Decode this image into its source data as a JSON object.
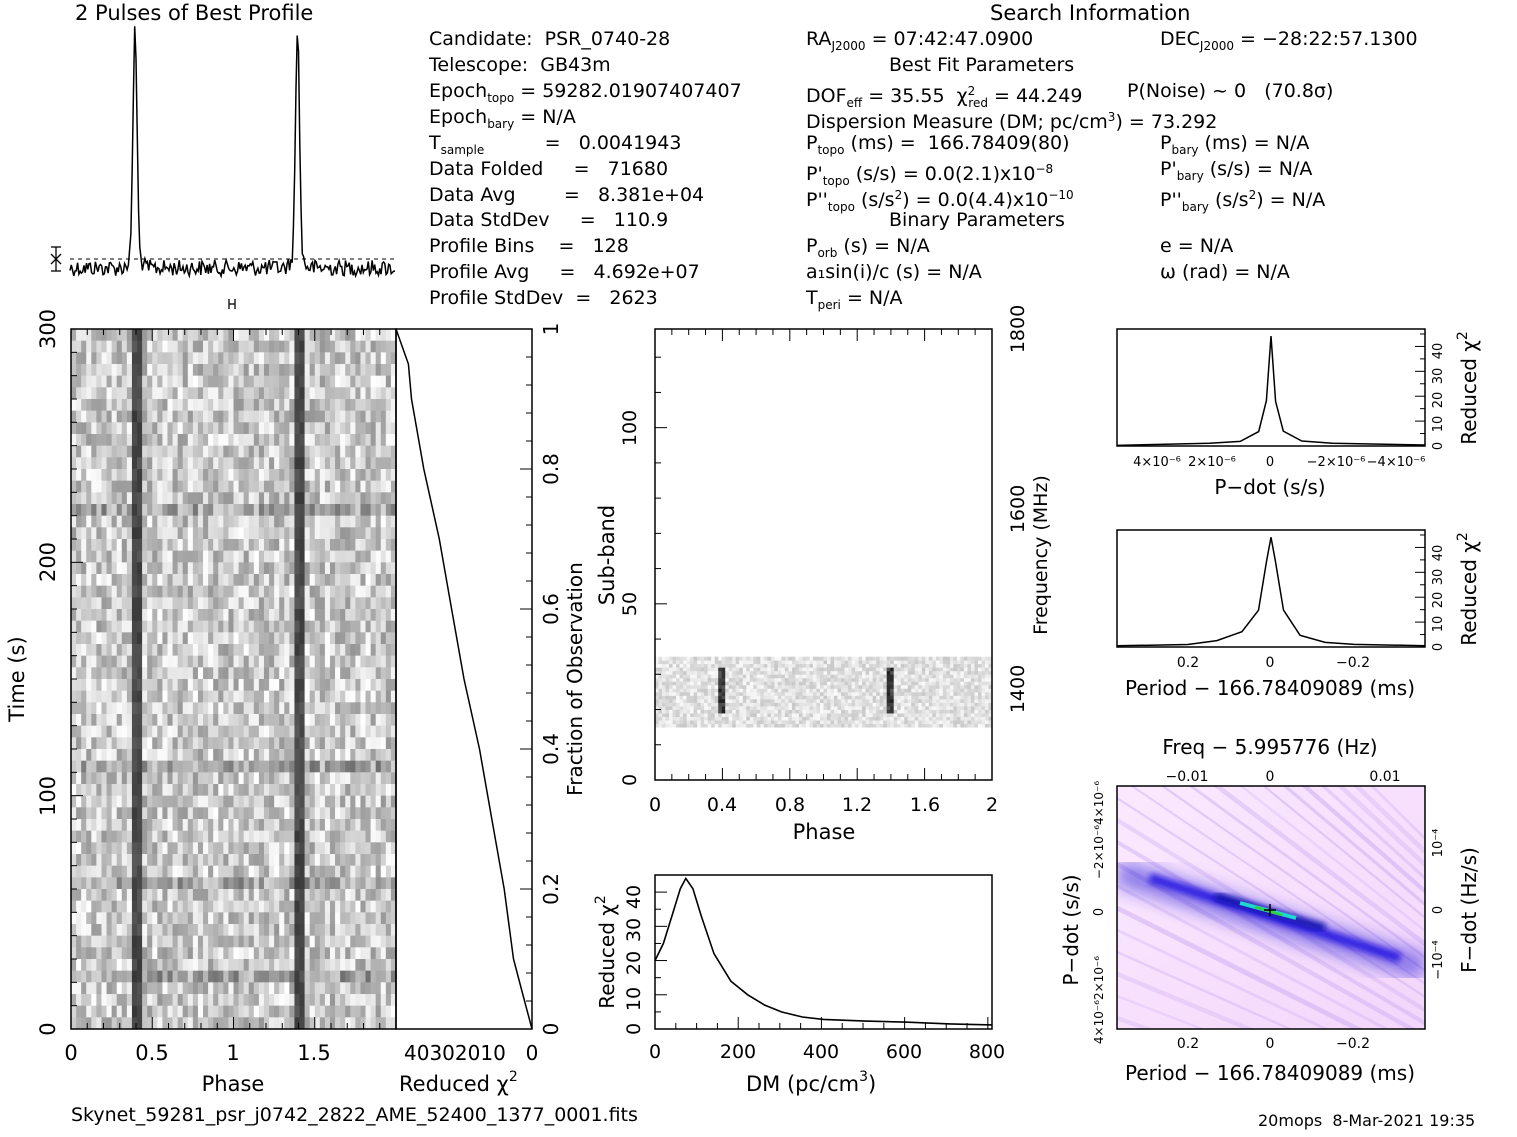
{
  "header": {
    "profile_title": "2 Pulses of Best Profile",
    "search_title": "Search Information",
    "best_fit_title": "Best Fit Parameters",
    "binary_title": "Binary Parameters"
  },
  "info": {
    "candidate": "Candidate:  PSR_0740-28",
    "telescope": "Telescope:  GB43m",
    "epoch_topo_val": "= 59282.01907407407",
    "epoch_bary_val": "= N/A",
    "t_sample_val": "=   0.0041943",
    "data_folded": "Data Folded     =   71680",
    "data_avg": "Data Avg        =   8.381e+04",
    "data_stddev": "Data StdDev     =   110.9",
    "profile_bins": "Profile Bins    =   128",
    "profile_avg": "Profile Avg     =   4.692e+07",
    "profile_stddev": "Profile StdDev  =   2623",
    "ra_val": "= 07:42:47.0900",
    "dec_val": "= −28:22:57.1300",
    "dof_val": "= 35.55",
    "chi_val": "= 44.249",
    "pnoise": "P(Noise) ~ 0   (70.8σ)",
    "dm_line": "Dispersion Measure (DM; pc/cm",
    "dm_val": ") = 73.292",
    "p_topo_val": "(ms) =  166.78409(80)",
    "p_bary_val": "(ms) = N/A",
    "pd_topo_val": "(s/s) = 0.0(2.1)x10",
    "pd_topo_exp": "−8",
    "pd_bary_val": "(s/s) = N/A",
    "pdd_topo_val": "(s/s",
    "pdd_topo_val2": ") = 0.0(4.4)x10",
    "pdd_topo_exp": "−10",
    "pdd_bary_val": "(s/s",
    "pdd_bary_val2": ") = N/A",
    "porb": "(s) = N/A",
    "e": "e = N/A",
    "a1": "a₁sin(i)/c (s) = N/A",
    "omega": "ω (rad) = N/A",
    "tperi": "= N/A"
  },
  "footer": {
    "filename": "Skynet_59281_psr_j0742_2822_AME_52400_1377_0001.fits",
    "stamp": "20mops  8-Mar-2021 19:35"
  },
  "chart_data": [
    {
      "type": "line",
      "title": "2 Pulses of Best Profile",
      "x": "phase 0-2",
      "pulse_peaks_phase": [
        0.4,
        1.4
      ],
      "notes": "profile shown twice; noise baseline with dashed mean and error bar"
    },
    {
      "type": "heatmap",
      "xlabel": "Phase",
      "ylabel": "Time (s)",
      "xlim": [
        0,
        2
      ],
      "ylim": [
        0,
        300
      ],
      "xticks": [
        "0",
        "0.5",
        "1",
        "1.5"
      ],
      "yticks": [
        "0",
        "100",
        "200",
        "300"
      ],
      "pulse_columns_phase": [
        0.4,
        1.4
      ]
    },
    {
      "type": "line",
      "xlabel": "Reduced χ²",
      "ylabel": "Fraction of Observation",
      "xticks": [
        "40",
        "30",
        "20",
        "10",
        "0"
      ],
      "yticks": [
        "0",
        "0.2",
        "0.4",
        "0.6",
        "0.8",
        "1"
      ],
      "x_reversed": true,
      "points": [
        [
          0,
          0
        ],
        [
          3,
          0.05
        ],
        [
          6,
          0.1
        ],
        [
          9,
          0.2
        ],
        [
          13,
          0.3
        ],
        [
          17,
          0.4
        ],
        [
          22,
          0.5
        ],
        [
          26,
          0.6
        ],
        [
          30,
          0.7
        ],
        [
          35,
          0.8
        ],
        [
          39,
          0.9
        ],
        [
          40,
          0.95
        ],
        [
          44,
          1.0
        ]
      ]
    },
    {
      "type": "heatmap",
      "xlabel": "Phase",
      "ylabel": "Sub-band",
      "ylabel_right": "Frequency (MHz)",
      "xlim": [
        0,
        2
      ],
      "ylim": [
        0,
        128
      ],
      "xticks": [
        "0",
        "0.4",
        "0.8",
        "1.2",
        "1.6",
        "2"
      ],
      "yticks": [
        "0",
        "50",
        "100"
      ],
      "yticks_right": [
        "1400",
        "1600",
        "1800"
      ],
      "filled_subbands": [
        15,
        35
      ],
      "pulse_columns_phase": [
        0.4,
        1.4
      ]
    },
    {
      "type": "line",
      "xlabel": "DM (pc/cm³)",
      "ylabel": "Reduced χ²",
      "xlim": [
        0,
        800
      ],
      "ylim": [
        0,
        45
      ],
      "xticks": [
        "0",
        "200",
        "400",
        "600",
        "800"
      ],
      "yticks": [
        "0",
        "10",
        "20",
        "30",
        "40"
      ],
      "points": [
        [
          0,
          20
        ],
        [
          20,
          25
        ],
        [
          40,
          33
        ],
        [
          60,
          41
        ],
        [
          73,
          44
        ],
        [
          90,
          41
        ],
        [
          110,
          33
        ],
        [
          140,
          22
        ],
        [
          180,
          14
        ],
        [
          220,
          10
        ],
        [
          260,
          7
        ],
        [
          300,
          5
        ],
        [
          350,
          3.5
        ],
        [
          400,
          2.8
        ],
        [
          500,
          2.3
        ],
        [
          600,
          2
        ],
        [
          700,
          1.5
        ],
        [
          800,
          1.2
        ]
      ]
    },
    {
      "type": "line",
      "xlabel": "P−dot (s/s)",
      "ylabel": "Reduced χ²",
      "xticks": [
        "4×10⁻⁶",
        "2×10⁻⁶",
        "0",
        "−2×10⁻⁶",
        "−4×10⁻⁶"
      ],
      "yticks": [
        "0",
        "10",
        "20",
        "30",
        "40"
      ],
      "ylim": [
        0,
        47
      ],
      "points": [
        [
          -5,
          0.5
        ],
        [
          -2,
          1
        ],
        [
          -1,
          2
        ],
        [
          -0.4,
          6
        ],
        [
          -0.15,
          18
        ],
        [
          0,
          44
        ],
        [
          0.15,
          18
        ],
        [
          0.4,
          6
        ],
        [
          1,
          2
        ],
        [
          2,
          1
        ],
        [
          5,
          0.5
        ]
      ]
    },
    {
      "type": "line",
      "xlabel": "Period − 166.78409089 (ms)",
      "ylabel": "Reduced χ²",
      "xticks": [
        "0.2",
        "0",
        "−0.2"
      ],
      "yticks": [
        "0",
        "10",
        "20",
        "30",
        "40"
      ],
      "ylim": [
        0,
        47
      ],
      "points": [
        [
          0.37,
          0.5
        ],
        [
          0.2,
          1
        ],
        [
          0.13,
          2.5
        ],
        [
          0.07,
          6
        ],
        [
          0.03,
          15
        ],
        [
          0.01,
          35
        ],
        [
          0,
          44
        ],
        [
          -0.01,
          35
        ],
        [
          -0.03,
          15
        ],
        [
          -0.07,
          5
        ],
        [
          -0.13,
          2
        ],
        [
          -0.2,
          1
        ],
        [
          -0.37,
          0.5
        ]
      ]
    },
    {
      "type": "heatmap",
      "title": "Freq − 5.995776 (Hz)",
      "xlabel": "Period − 166.78409089 (ms)",
      "ylabel": "P−dot (s/s)",
      "ylabel_right": "F−dot (Hz/s)",
      "xticks": [
        "0.2",
        "0",
        "−0.2"
      ],
      "xticks_top": [
        "−0.01",
        "0",
        "0.01"
      ],
      "yticks_right": [
        "−10⁻⁴",
        "0",
        "10⁻⁴"
      ]
    }
  ]
}
